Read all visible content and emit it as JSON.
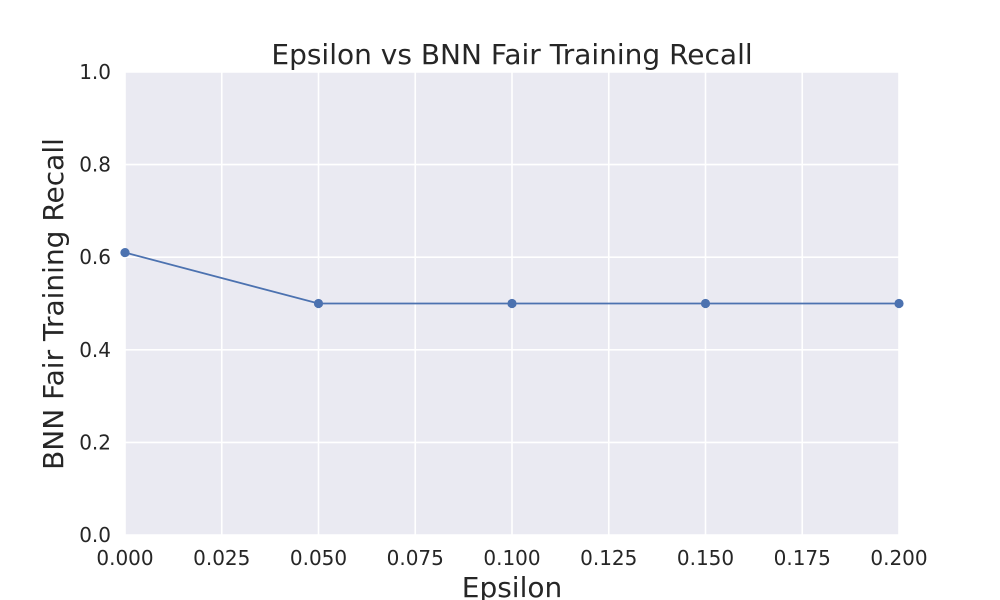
{
  "chart_data": {
    "type": "line",
    "title": "Epsilon vs BNN Fair Training Recall",
    "xlabel": "Epsilon",
    "ylabel": "BNN Fair Training Recall",
    "xlim": [
      0.0,
      0.2
    ],
    "ylim": [
      0.0,
      1.0
    ],
    "x_ticks": [
      "0.000",
      "0.025",
      "0.050",
      "0.075",
      "0.100",
      "0.125",
      "0.150",
      "0.175",
      "0.200"
    ],
    "y_ticks": [
      "0.0",
      "0.2",
      "0.4",
      "0.6",
      "0.8",
      "1.0"
    ],
    "grid": true,
    "series": [
      {
        "color": "#4c72b0",
        "marker": "circle",
        "x": [
          0.0,
          0.05,
          0.1,
          0.15,
          0.2
        ],
        "y": [
          0.61,
          0.5,
          0.5,
          0.5,
          0.5
        ]
      }
    ]
  }
}
